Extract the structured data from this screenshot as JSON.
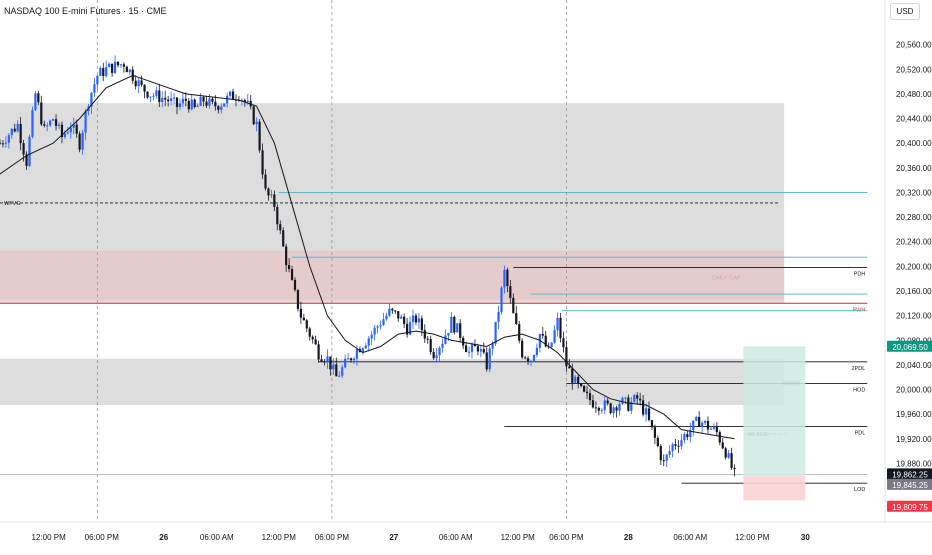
{
  "header": {
    "symbol_title": "NASDAQ 100 E-mini Futures · 15 · CME",
    "currency_button": "USD"
  },
  "colors": {
    "up": "#2962ff",
    "down": "#131722",
    "grid": "#d1d4dc",
    "gray_zone": "#d9d9d9",
    "pink_zone": "#e8c8ca",
    "red_line": "#f23645",
    "teal_line": "#4fb3c4",
    "long_tp": "#cdeae3",
    "long_sl": "#fbd3d6"
  },
  "chart_data": {
    "type": "candlestick",
    "title": "NASDAQ 100 E-mini Futures · 15 · CME",
    "y_range": [
      19785,
      20600
    ],
    "y_ticks": [
      20560,
      20520,
      20480,
      20440,
      20400,
      20360,
      20320,
      20280,
      20240,
      20200,
      20160,
      20120,
      20080,
      20040,
      20000,
      19960,
      19920,
      19880
    ],
    "y_tick_labels": [
      "20,560.00",
      "20,520.00",
      "20,480.00",
      "20,440.00",
      "20,400.00",
      "20,360.00",
      "20,320.00",
      "20,280.00",
      "20,240.00",
      "20,200.00",
      "20,160.00",
      "20,120.00",
      "20,080.00",
      "20,040.00",
      "20,000.00",
      "19,960.00",
      "19,920.00",
      "19,880.00"
    ],
    "x_range": [
      0,
      100
    ],
    "x_ticks": [
      {
        "x": 5.5,
        "label": "12:00 PM"
      },
      {
        "x": 11.5,
        "label": "06:00 PM"
      },
      {
        "x": 18.5,
        "label": "26"
      },
      {
        "x": 24.5,
        "label": "06:00 AM"
      },
      {
        "x": 31.5,
        "label": "12:00 PM"
      },
      {
        "x": 37.5,
        "label": "06:00 PM"
      },
      {
        "x": 44.5,
        "label": "27"
      },
      {
        "x": 51.5,
        "label": "06:00 AM"
      },
      {
        "x": 58.5,
        "label": "12:00 PM"
      },
      {
        "x": 64,
        "label": "06:00 PM"
      },
      {
        "x": 71,
        "label": "28"
      },
      {
        "x": 78,
        "label": "06:00 AM"
      },
      {
        "x": 85,
        "label": "12:00 PM"
      },
      {
        "x": 91,
        "label": "30"
      }
    ],
    "session_lines_x": [
      11,
      37.5,
      64
    ],
    "ohlc_path": [
      [
        0,
        20400
      ],
      [
        2,
        20430
      ],
      [
        3,
        20370
      ],
      [
        4,
        20480
      ],
      [
        5,
        20420
      ],
      [
        6,
        20440
      ],
      [
        7,
        20410
      ],
      [
        8,
        20430
      ],
      [
        9,
        20400
      ],
      [
        10,
        20470
      ],
      [
        11,
        20510
      ],
      [
        12,
        20520
      ],
      [
        13,
        20525
      ],
      [
        14,
        20530
      ],
      [
        15,
        20510
      ],
      [
        16,
        20490
      ],
      [
        17,
        20480
      ],
      [
        18,
        20475
      ],
      [
        19,
        20470
      ],
      [
        20,
        20460
      ],
      [
        21,
        20470
      ],
      [
        22,
        20455
      ],
      [
        23,
        20470
      ],
      [
        24,
        20460
      ],
      [
        25,
        20465
      ],
      [
        26,
        20475
      ],
      [
        27,
        20480
      ],
      [
        28,
        20460
      ],
      [
        29,
        20430
      ],
      [
        30,
        20320
      ],
      [
        31,
        20300
      ],
      [
        32,
        20230
      ],
      [
        33,
        20170
      ],
      [
        34,
        20120
      ],
      [
        35,
        20090
      ],
      [
        36,
        20060
      ],
      [
        37,
        20050
      ],
      [
        38,
        20020
      ],
      [
        39,
        20040
      ],
      [
        40,
        20060
      ],
      [
        41,
        20075
      ],
      [
        42,
        20090
      ],
      [
        43,
        20110
      ],
      [
        44,
        20125
      ],
      [
        45,
        20120
      ],
      [
        46,
        20100
      ],
      [
        47,
        20115
      ],
      [
        48,
        20090
      ],
      [
        49,
        20060
      ],
      [
        50,
        20080
      ],
      [
        51,
        20110
      ],
      [
        52,
        20090
      ],
      [
        53,
        20060
      ],
      [
        54,
        20070
      ],
      [
        55,
        20040
      ],
      [
        56,
        20100
      ],
      [
        57,
        20190
      ],
      [
        58,
        20120
      ],
      [
        59,
        20060
      ],
      [
        60,
        20050
      ],
      [
        61,
        20090
      ],
      [
        62,
        20060
      ],
      [
        63,
        20110
      ],
      [
        64,
        20040
      ],
      [
        65,
        20010
      ],
      [
        66,
        19990
      ],
      [
        67,
        19980
      ],
      [
        68,
        19975
      ],
      [
        69,
        19970
      ],
      [
        70,
        19980
      ],
      [
        71,
        19975
      ],
      [
        72,
        19985
      ],
      [
        73,
        19960
      ],
      [
        74,
        19920
      ],
      [
        75,
        19880
      ],
      [
        76,
        19910
      ],
      [
        77,
        19920
      ],
      [
        78,
        19935
      ],
      [
        79,
        19950
      ],
      [
        80,
        19940
      ],
      [
        81,
        19930
      ],
      [
        82,
        19900
      ],
      [
        83,
        19860
      ]
    ],
    "moving_average": [
      [
        0,
        20350
      ],
      [
        3,
        20380
      ],
      [
        6,
        20400
      ],
      [
        9,
        20440
      ],
      [
        12,
        20490
      ],
      [
        15,
        20510
      ],
      [
        18,
        20495
      ],
      [
        21,
        20480
      ],
      [
        24,
        20475
      ],
      [
        27,
        20470
      ],
      [
        29,
        20460
      ],
      [
        31,
        20400
      ],
      [
        33,
        20300
      ],
      [
        35,
        20200
      ],
      [
        37,
        20120
      ],
      [
        39,
        20080
      ],
      [
        41,
        20060
      ],
      [
        43,
        20070
      ],
      [
        45,
        20090
      ],
      [
        47,
        20095
      ],
      [
        49,
        20090
      ],
      [
        51,
        20080
      ],
      [
        53,
        20075
      ],
      [
        55,
        20070
      ],
      [
        57,
        20085
      ],
      [
        59,
        20090
      ],
      [
        61,
        20080
      ],
      [
        63,
        20060
      ],
      [
        65,
        20030
      ],
      [
        67,
        20000
      ],
      [
        69,
        19985
      ],
      [
        71,
        19978
      ],
      [
        73,
        19975
      ],
      [
        75,
        19960
      ],
      [
        77,
        19935
      ],
      [
        79,
        19930
      ],
      [
        81,
        19925
      ],
      [
        83,
        19920
      ]
    ],
    "zones": [
      {
        "x1": 0,
        "x2": 88.6,
        "y_top": 20465,
        "y_bottom": 20140,
        "kind": "gray"
      },
      {
        "x1": 0,
        "x2": 88.6,
        "y_top": 20225,
        "y_bottom": 20145,
        "kind": "pink"
      },
      {
        "x1": 0,
        "x2": 88.6,
        "y_top": 20050,
        "y_bottom": 19975,
        "kind": "gray"
      }
    ],
    "levels": [
      {
        "x1": 31.5,
        "x2": 98,
        "y": 20320,
        "color": "teal",
        "label": "",
        "dash": false
      },
      {
        "x1": 0,
        "x2": 88,
        "y": 20303,
        "color": "black",
        "label": "WFVG",
        "dash": true
      },
      {
        "x1": 33,
        "x2": 98,
        "y": 20215,
        "color": "teal",
        "label": "",
        "dash": false
      },
      {
        "x1": 58,
        "x2": 98,
        "y": 20198,
        "color": "black",
        "label": "PDH",
        "dash": false
      },
      {
        "x1": 80,
        "x2": 90,
        "y": 20182,
        "color": "pink_text",
        "label": "DAILY GAP",
        "dash": false
      },
      {
        "x1": 60,
        "x2": 98,
        "y": 20155,
        "color": "teal",
        "label": "",
        "dash": false
      },
      {
        "x1": 0,
        "x2": 98,
        "y": 20140,
        "color": "red",
        "label": "PWH",
        "dash": false
      },
      {
        "x1": 63.5,
        "x2": 98,
        "y": 20128,
        "color": "teal",
        "label": "",
        "dash": false
      },
      {
        "x1": 36,
        "x2": 98,
        "y": 20045,
        "color": "black",
        "label": "2PDL",
        "dash": false
      },
      {
        "x1": 64,
        "x2": 98,
        "y": 20010,
        "color": "black",
        "label": "HOD",
        "dash": false
      },
      {
        "x1": 88,
        "x2": 92,
        "y": 20010,
        "color": "black_text",
        "label": "NWOG",
        "dash": false
      },
      {
        "x1": 57,
        "x2": 98,
        "y": 19940,
        "color": "black",
        "label": "PDL",
        "dash": false
      },
      {
        "x1": 84,
        "x2": 89,
        "y": 19928,
        "color": "gray_dash",
        "label": "M5 FVG",
        "dash": true
      },
      {
        "x1": 0,
        "x2": 98,
        "y": 19862,
        "color": "gray",
        "label": "",
        "dash": false
      },
      {
        "x1": 77,
        "x2": 98,
        "y": 19848,
        "color": "black",
        "label": "LOD",
        "dash": false
      }
    ],
    "long_position": {
      "x1": 84,
      "x2": 91,
      "entry": 19860,
      "target": 20070,
      "stop": 19820
    },
    "price_badges": [
      {
        "y": 20069.5,
        "text": "20,069.50",
        "bg": "#089981",
        "fg": "#ffffff"
      },
      {
        "y": 19862.25,
        "text": "19,862.25",
        "sub": "10:37",
        "bg": "#131722",
        "fg": "#ffffff"
      },
      {
        "y": 19845.25,
        "text": "19,845.25",
        "bg": "#787b86",
        "fg": "#ffffff"
      },
      {
        "y": 19809.75,
        "text": "19,809.75",
        "bg": "#f23645",
        "fg": "#ffffff"
      }
    ]
  }
}
